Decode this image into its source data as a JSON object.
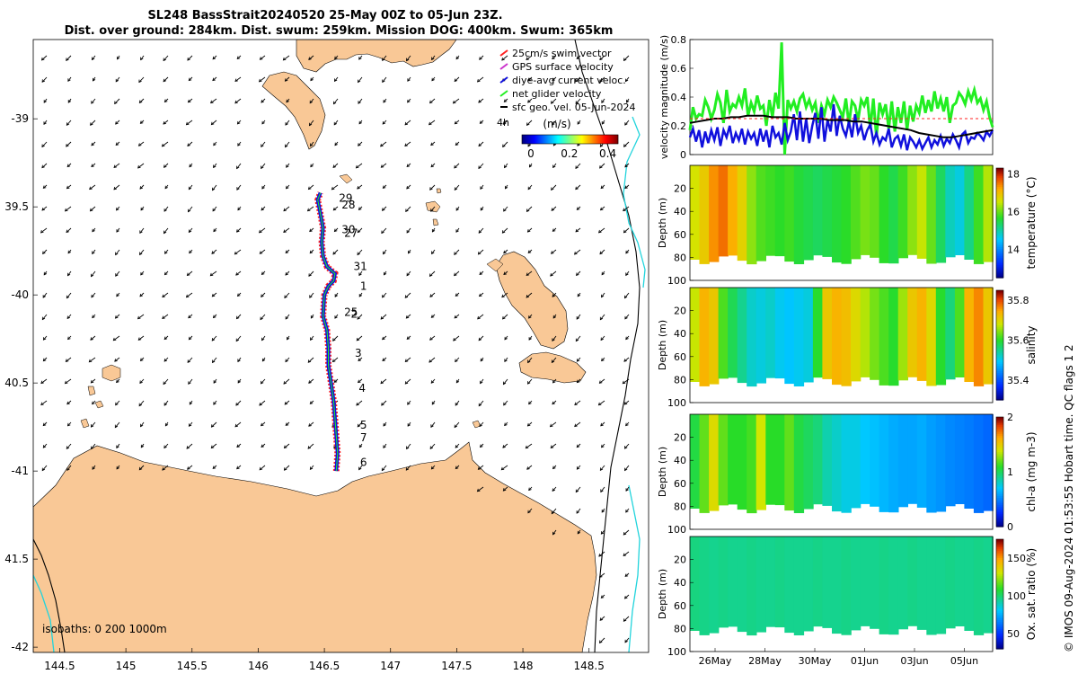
{
  "title": {
    "line1": "SL248 BassStrait20240520 25-May 00Z to 05-Jun 23Z.",
    "line2": "Dist. over ground: 284km. Dist. swum: 259km. Mission DOG: 400km. Swum: 365km"
  },
  "map": {
    "lon_ticks": [
      "144.5",
      "145",
      "145.5",
      "146",
      "146.5",
      "147",
      "147.5",
      "148",
      "148.5"
    ],
    "lon_values": [
      144.5,
      145,
      145.5,
      146,
      146.5,
      147,
      147.5,
      148,
      148.5
    ],
    "lat_ticks": [
      "-39",
      "39.5",
      "-40",
      "40.5",
      "-41",
      "41.5",
      "-42"
    ],
    "lat_values": [
      -39,
      -39.5,
      -40,
      -40.5,
      -41,
      -41.5,
      -42
    ],
    "lon_range": [
      144.3,
      148.95
    ],
    "lat_range": [
      -42.03,
      -38.55
    ],
    "legend": [
      {
        "label": "25cm/s swim vector",
        "color": "#ff2020"
      },
      {
        "label": "GPS surface velocity",
        "color": "#cc33cc"
      },
      {
        "label": "diye-avg current veloc.",
        "color": "#1010dd"
      },
      {
        "label": "net glider velocity",
        "color": "#22ee22"
      },
      {
        "label": "sfc geo. vel. 05-Jun-2024",
        "color": "#000000"
      }
    ],
    "legend_extra": "4h",
    "colorbar_unit": "(m/s)",
    "colorbar_ticks": [
      "0",
      "0.2",
      "0.4"
    ],
    "isobaths_label": "isobaths: 0   200  1000m",
    "day_labels": [
      {
        "t": "29",
        "lon": 146.61,
        "lat": -39.47
      },
      {
        "t": "28",
        "lon": 146.63,
        "lat": -39.51
      },
      {
        "t": "30",
        "lon": 146.63,
        "lat": -39.65
      },
      {
        "t": "27",
        "lon": 146.65,
        "lat": -39.67
      },
      {
        "t": "31",
        "lon": 146.72,
        "lat": -39.86
      },
      {
        "t": "1",
        "lon": 146.77,
        "lat": -39.97
      },
      {
        "t": "25",
        "lon": 146.65,
        "lat": -40.12
      },
      {
        "t": "2",
        "lon": 146.7,
        "lat": -40.13
      },
      {
        "t": "3",
        "lon": 146.73,
        "lat": -40.35
      },
      {
        "t": "4",
        "lon": 146.76,
        "lat": -40.55
      },
      {
        "t": "5",
        "lon": 146.77,
        "lat": -40.76
      },
      {
        "t": "7",
        "lon": 146.77,
        "lat": -40.83
      },
      {
        "t": "6",
        "lon": 146.77,
        "lat": -40.97
      }
    ]
  },
  "chart_data": [
    {
      "type": "line",
      "title": "",
      "xlabel": "",
      "ylabel": "velocity magnitude (m/s)",
      "ylim": [
        0,
        0.8
      ],
      "yticks": [
        "0",
        "0.2",
        "0.4",
        "0.6",
        "0.8"
      ],
      "series": [
        {
          "name": "net glider velocity",
          "color": "#22ee22",
          "values": [
            0.17,
            0.33,
            0.25,
            0.28,
            0.27,
            0.38,
            0.33,
            0.25,
            0.31,
            0.42,
            0.36,
            0.22,
            0.45,
            0.3,
            0.35,
            0.33,
            0.4,
            0.34,
            0.46,
            0.27,
            0.36,
            0.3,
            0.41,
            0.32,
            0.34,
            0.2,
            0.38,
            0.26,
            0.43,
            0.32,
            0.78,
            0.0,
            0.38,
            0.32,
            0.37,
            0.3,
            0.39,
            0.42,
            0.33,
            0.38,
            0.31,
            0.36,
            0.22,
            0.34,
            0.28,
            0.38,
            0.33,
            0.4,
            0.36,
            0.31,
            0.26,
            0.39,
            0.21,
            0.37,
            0.34,
            0.24,
            0.38,
            0.34,
            0.4,
            0.18,
            0.39,
            0.12,
            0.36,
            0.28,
            0.35,
            0.18,
            0.37,
            0.16,
            0.33,
            0.22,
            0.37,
            0.17,
            0.34,
            0.23,
            0.34,
            0.29,
            0.41,
            0.29,
            0.38,
            0.3,
            0.44,
            0.32,
            0.39,
            0.3,
            0.4,
            0.22,
            0.34,
            0.36,
            0.43,
            0.4,
            0.35,
            0.44,
            0.38,
            0.45,
            0.36,
            0.39,
            0.31,
            0.37,
            0.26,
            0.19
          ]
        },
        {
          "name": "diye-avg current veloc.",
          "color": "#1010dd",
          "values": [
            0.12,
            0.18,
            0.09,
            0.17,
            0.05,
            0.16,
            0.08,
            0.17,
            0.1,
            0.19,
            0.06,
            0.17,
            0.12,
            0.2,
            0.08,
            0.15,
            0.1,
            0.18,
            0.07,
            0.16,
            0.11,
            0.15,
            0.06,
            0.18,
            0.09,
            0.17,
            0.05,
            0.2,
            0.12,
            0.15,
            0.07,
            0.22,
            0.1,
            0.16,
            0.28,
            0.1,
            0.3,
            0.09,
            0.25,
            0.08,
            0.2,
            0.29,
            0.11,
            0.33,
            0.09,
            0.24,
            0.16,
            0.35,
            0.13,
            0.27,
            0.18,
            0.13,
            0.23,
            0.12,
            0.28,
            0.15,
            0.2,
            0.1,
            0.17,
            0.21,
            0.09,
            0.15,
            0.07,
            0.12,
            0.1,
            0.18,
            0.05,
            0.11,
            0.13,
            0.06,
            0.14,
            0.03,
            0.12,
            0.09,
            0.05,
            0.1,
            0.04,
            0.08,
            0.12,
            0.05,
            0.1,
            0.07,
            0.13,
            0.06,
            0.11,
            0.08,
            0.14,
            0.1,
            0.05,
            0.14,
            0.16,
            0.08,
            0.12,
            0.11,
            0.15,
            0.13,
            0.1,
            0.16,
            0.13,
            0.17
          ]
        },
        {
          "name": "sfc geo. vel.",
          "color": "#000000",
          "values": [
            0.22,
            0.23,
            0.24,
            0.25,
            0.25,
            0.26,
            0.26,
            0.27,
            0.27,
            0.27,
            0.26,
            0.26,
            0.26,
            0.25,
            0.25,
            0.25,
            0.25,
            0.24,
            0.24,
            0.24,
            0.23,
            0.23,
            0.22,
            0.21,
            0.2,
            0.19,
            0.18,
            0.17,
            0.15,
            0.14,
            0.13,
            0.12,
            0.12,
            0.13,
            0.14,
            0.15,
            0.16,
            0.17
          ]
        },
        {
          "name": "swim speed",
          "color": "#ff2020",
          "values": [
            0.25,
            0.25,
            0.25,
            0.25,
            0.25,
            0.25,
            0.25,
            0.25,
            0.25,
            0.25,
            0.25,
            0.25,
            0.25,
            0.25,
            0.25,
            0.25,
            0.25,
            0.25,
            0.25,
            0.25
          ]
        }
      ]
    },
    {
      "type": "heatmap",
      "ylabel": "Depth (m)",
      "colorbar_label": "temperature (°C)",
      "clim": [
        12.5,
        18.3
      ],
      "cbar_ticks": [
        "14",
        "16",
        "18"
      ],
      "yticks": [
        "20",
        "40",
        "60",
        "80",
        "100"
      ],
      "xtick_labels": [
        "26May",
        "28May",
        "30May",
        "01Jun",
        "03Jun",
        "05Jun"
      ],
      "column_values": [
        16.6,
        16.9,
        17.4,
        17.6,
        17.2,
        16.8,
        16.2,
        15.9,
        15.8,
        15.7,
        15.8,
        15.6,
        15.5,
        15.4,
        15.5,
        15.6,
        15.7,
        15.9,
        16.1,
        16.0,
        15.7,
        15.5,
        15.8,
        16.2,
        16.5,
        16.0,
        15.4,
        14.9,
        14.7,
        15.2,
        15.8,
        16.4
      ]
    },
    {
      "type": "heatmap",
      "ylabel": "Depth (m)",
      "colorbar_label": "salinity",
      "clim": [
        35.3,
        35.85
      ],
      "cbar_ticks": [
        "35.4",
        "35.6",
        "35.8"
      ],
      "yticks": [
        "20",
        "40",
        "60",
        "80",
        "100"
      ],
      "xtick_labels": [
        "26May",
        "28May",
        "30May",
        "01Jun",
        "03Jun",
        "05Jun"
      ],
      "column_values": [
        35.68,
        35.74,
        35.72,
        35.62,
        35.58,
        35.55,
        35.52,
        35.51,
        35.52,
        35.5,
        35.49,
        35.5,
        35.51,
        35.6,
        35.72,
        35.74,
        35.73,
        35.7,
        35.67,
        35.64,
        35.62,
        35.6,
        35.66,
        35.72,
        35.74,
        35.7,
        35.6,
        35.56,
        35.62,
        35.74,
        35.77,
        35.72
      ]
    },
    {
      "type": "heatmap",
      "ylabel": "Depth (m)",
      "colorbar_label": "chl-a (mg m-3)",
      "clim": [
        0,
        2
      ],
      "cbar_ticks": [
        "0",
        "1",
        "2"
      ],
      "yticks": [
        "20",
        "40",
        "60",
        "80",
        "100"
      ],
      "xtick_labels": [
        "26May",
        "28May",
        "30May",
        "01Jun",
        "03Jun",
        "05Jun"
      ],
      "column_values": [
        1.05,
        1.2,
        1.45,
        1.2,
        1.1,
        1.1,
        1.15,
        1.4,
        1.1,
        1.1,
        1.2,
        1.05,
        1.0,
        0.95,
        0.85,
        0.8,
        0.75,
        0.75,
        0.7,
        0.68,
        0.65,
        0.62,
        0.6,
        0.6,
        0.62,
        0.58,
        0.55,
        0.52,
        0.5,
        0.48,
        0.45,
        0.42
      ]
    },
    {
      "type": "heatmap",
      "ylabel": "Depth (m)",
      "colorbar_label": "Ox. sat. ratio (%)",
      "clim": [
        30,
        175
      ],
      "cbar_ticks": [
        "50",
        "100",
        "150"
      ],
      "yticks": [
        "20",
        "40",
        "60",
        "80",
        "100"
      ],
      "xtick_labels": [
        "26May",
        "28May",
        "30May",
        "01Jun",
        "03Jun",
        "05Jun"
      ],
      "column_values": [
        98,
        97,
        96,
        97,
        96,
        96,
        97,
        96,
        96,
        97,
        96,
        96,
        96,
        97,
        96,
        96,
        97,
        96,
        96,
        96,
        97,
        96,
        96,
        97,
        96,
        96,
        96,
        97,
        96,
        96,
        97,
        96
      ]
    }
  ],
  "side_note": "© IMOS 09-Aug-2024 01:53:55 Hobart time. QC flags 1  2"
}
